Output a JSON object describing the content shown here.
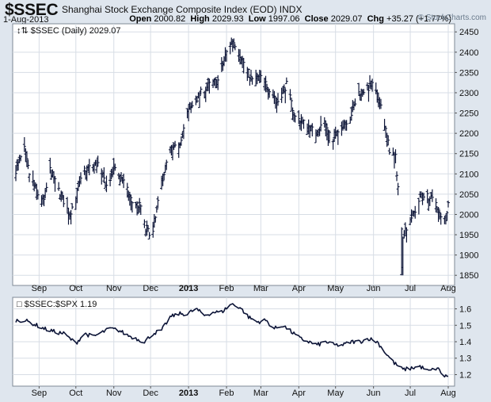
{
  "header": {
    "ticker": "$SSEC",
    "company": "Shanghai Stock Exchange Composite Index (EOD)  INDX",
    "date": "1-Aug-2013",
    "open_label": "Open",
    "open_value": "2000.82",
    "high_label": "High",
    "high_value": "2029.93",
    "low_label": "Low",
    "low_value": "1997.06",
    "close_label": "Close",
    "close_value": "2029.07",
    "chg_label": "Chg",
    "chg_value": "+35.27 (+1.77%)",
    "watermark": "© StockCharts.com"
  },
  "colors": {
    "background": "#dfe6ee",
    "plot": "#ffffff",
    "series": "#0c1437",
    "grid": "#d7dde5"
  },
  "chart_data": [
    {
      "type": "ohlc",
      "legend": "$SSEC (Daily) 2029.07",
      "ylim": [
        1825,
        2470
      ],
      "yticks": [
        1850,
        1900,
        1950,
        2000,
        2050,
        2100,
        2150,
        2200,
        2250,
        2300,
        2350,
        2400,
        2450
      ],
      "xticks": [
        "Sep",
        "Oct",
        "Nov",
        "Dec",
        "2013",
        "Feb",
        "Mar",
        "Apr",
        "May",
        "Jun",
        "Jul",
        "Aug"
      ],
      "grid": true,
      "x_start": "2012-08-13",
      "x_end": "2013-08-01",
      "y_axis": "right",
      "anchors": [
        [
          "2012-08-13",
          2110
        ],
        [
          "2012-08-20",
          2160
        ],
        [
          "2012-08-24",
          2100
        ],
        [
          "2012-08-31",
          2050
        ],
        [
          "2012-09-05",
          2035
        ],
        [
          "2012-09-10",
          2110
        ],
        [
          "2012-09-17",
          2060
        ],
        [
          "2012-09-26",
          2000
        ],
        [
          "2012-10-08",
          2110
        ],
        [
          "2012-10-19",
          2125
        ],
        [
          "2012-10-26",
          2070
        ],
        [
          "2012-11-02",
          2115
        ],
        [
          "2012-11-09",
          2080
        ],
        [
          "2012-11-16",
          2030
        ],
        [
          "2012-11-23",
          2020
        ],
        [
          "2012-11-27",
          1960
        ],
        [
          "2012-12-03",
          1955
        ],
        [
          "2012-12-10",
          2080
        ],
        [
          "2012-12-17",
          2160
        ],
        [
          "2012-12-24",
          2165
        ],
        [
          "2012-12-31",
          2250
        ],
        [
          "2013-01-11",
          2300
        ],
        [
          "2013-01-18",
          2320
        ],
        [
          "2013-01-25",
          2330
        ],
        [
          "2013-02-01",
          2400
        ],
        [
          "2013-02-06",
          2430
        ],
        [
          "2013-02-08",
          2420
        ],
        [
          "2013-02-22",
          2330
        ],
        [
          "2013-03-01",
          2340
        ],
        [
          "2013-03-08",
          2310
        ],
        [
          "2013-03-15",
          2280
        ],
        [
          "2013-03-22",
          2320
        ],
        [
          "2013-03-29",
          2240
        ],
        [
          "2013-04-08",
          2220
        ],
        [
          "2013-04-15",
          2200
        ],
        [
          "2013-04-22",
          2230
        ],
        [
          "2013-04-29",
          2180
        ],
        [
          "2013-05-06",
          2220
        ],
        [
          "2013-05-13",
          2240
        ],
        [
          "2013-05-20",
          2300
        ],
        [
          "2013-05-27",
          2310
        ],
        [
          "2013-05-31",
          2320
        ],
        [
          "2013-06-07",
          2270
        ],
        [
          "2013-06-14",
          2160
        ],
        [
          "2013-06-19",
          2140
        ],
        [
          "2013-06-24",
          1960
        ],
        [
          "2013-06-25",
          1950
        ],
        [
          "2013-07-01",
          1990
        ],
        [
          "2013-07-05",
          2010
        ],
        [
          "2013-07-10",
          2050
        ],
        [
          "2013-07-12",
          2050
        ],
        [
          "2013-07-17",
          2040
        ],
        [
          "2013-07-22",
          2030
        ],
        [
          "2013-07-26",
          1990
        ],
        [
          "2013-07-30",
          1990
        ],
        [
          "2013-08-01",
          2029
        ]
      ]
    },
    {
      "type": "line",
      "legend": "$SSEC:$SPX 1.19",
      "ylim": [
        1.13,
        1.67
      ],
      "yticks": [
        1.2,
        1.3,
        1.4,
        1.5,
        1.6
      ],
      "xticks": [
        "Sep",
        "Oct",
        "Nov",
        "Dec",
        "2013",
        "Feb",
        "Mar",
        "Apr",
        "May",
        "Jun",
        "Jul",
        "Aug"
      ],
      "grid": true,
      "x_start": "2012-08-13",
      "x_end": "2013-08-01",
      "y_axis": "right",
      "anchors": [
        [
          "2012-08-13",
          1.53
        ],
        [
          "2012-08-20",
          1.53
        ],
        [
          "2012-08-27",
          1.51
        ],
        [
          "2012-09-05",
          1.48
        ],
        [
          "2012-09-14",
          1.46
        ],
        [
          "2012-09-21",
          1.45
        ],
        [
          "2012-10-01",
          1.39
        ],
        [
          "2012-10-08",
          1.45
        ],
        [
          "2012-10-15",
          1.43
        ],
        [
          "2012-10-29",
          1.48
        ],
        [
          "2012-11-05",
          1.47
        ],
        [
          "2012-11-12",
          1.44
        ],
        [
          "2012-11-19",
          1.42
        ],
        [
          "2012-11-26",
          1.4
        ],
        [
          "2012-12-03",
          1.45
        ],
        [
          "2012-12-10",
          1.47
        ],
        [
          "2012-12-17",
          1.55
        ],
        [
          "2012-12-24",
          1.57
        ],
        [
          "2012-12-31",
          1.57
        ],
        [
          "2013-01-07",
          1.6
        ],
        [
          "2013-01-14",
          1.56
        ],
        [
          "2013-01-21",
          1.58
        ],
        [
          "2013-01-28",
          1.58
        ],
        [
          "2013-02-05",
          1.63
        ],
        [
          "2013-02-12",
          1.61
        ],
        [
          "2013-02-19",
          1.55
        ],
        [
          "2013-02-26",
          1.52
        ],
        [
          "2013-03-05",
          1.53
        ],
        [
          "2013-03-12",
          1.48
        ],
        [
          "2013-03-19",
          1.5
        ],
        [
          "2013-03-26",
          1.46
        ],
        [
          "2013-04-02",
          1.42
        ],
        [
          "2013-04-09",
          1.4
        ],
        [
          "2013-04-16",
          1.38
        ],
        [
          "2013-04-23",
          1.4
        ],
        [
          "2013-04-30",
          1.38
        ],
        [
          "2013-05-07",
          1.38
        ],
        [
          "2013-05-14",
          1.4
        ],
        [
          "2013-05-21",
          1.4
        ],
        [
          "2013-05-28",
          1.42
        ],
        [
          "2013-06-04",
          1.4
        ],
        [
          "2013-06-11",
          1.33
        ],
        [
          "2013-06-18",
          1.27
        ],
        [
          "2013-06-25",
          1.23
        ],
        [
          "2013-07-02",
          1.24
        ],
        [
          "2013-07-09",
          1.25
        ],
        [
          "2013-07-16",
          1.22
        ],
        [
          "2013-07-23",
          1.24
        ],
        [
          "2013-07-29",
          1.19
        ],
        [
          "2013-08-01",
          1.19
        ]
      ]
    }
  ]
}
